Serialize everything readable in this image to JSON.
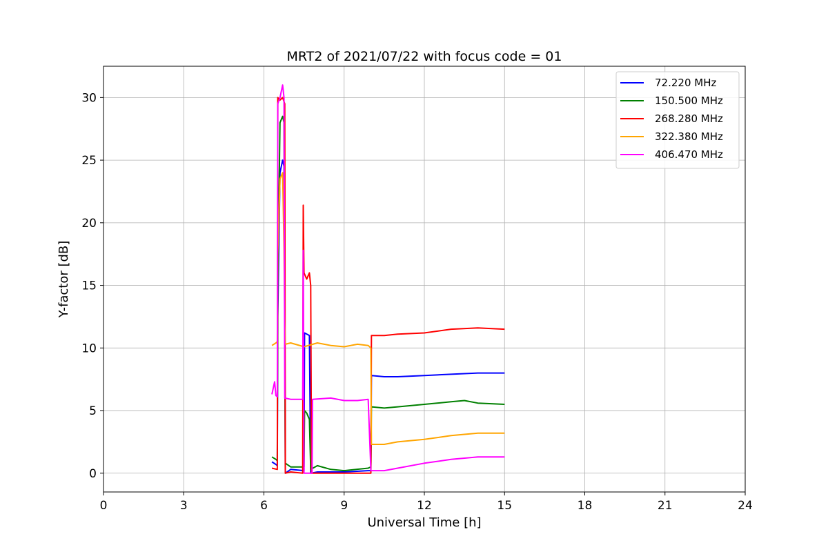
{
  "chart_data": {
    "type": "line",
    "title": "MRT2 of 2021/07/22 with focus code = 01",
    "xlabel": "Universal Time [h]",
    "ylabel": "Y-factor [dB]",
    "xlim": [
      0,
      24
    ],
    "ylim": [
      -1.5,
      32.5
    ],
    "xticks": [
      0,
      3,
      6,
      9,
      12,
      15,
      18,
      21,
      24
    ],
    "yticks": [
      0,
      5,
      10,
      15,
      20,
      25,
      30
    ],
    "grid": true,
    "legend_position": "top-right",
    "series": [
      {
        "name": " 72.220 MHz",
        "color": "#0000ff",
        "points": [
          [
            6.3,
            0.9
          ],
          [
            6.45,
            0.7
          ],
          [
            6.5,
            0.6
          ],
          [
            6.52,
            12.5
          ],
          [
            6.6,
            24.0
          ],
          [
            6.7,
            25.0
          ],
          [
            6.75,
            24.5
          ],
          [
            6.78,
            12.5
          ],
          [
            6.8,
            0.0
          ],
          [
            7.0,
            0.3
          ],
          [
            7.5,
            0.2
          ],
          [
            7.52,
            11.2
          ],
          [
            7.7,
            11.0
          ],
          [
            7.75,
            0.0
          ],
          [
            8.0,
            0.1
          ],
          [
            9.0,
            0.1
          ],
          [
            9.9,
            0.2
          ],
          [
            10.0,
            0.2
          ],
          [
            10.02,
            7.8
          ],
          [
            10.5,
            7.7
          ],
          [
            11.0,
            7.7
          ],
          [
            12.0,
            7.8
          ],
          [
            13.0,
            7.9
          ],
          [
            14.0,
            8.0
          ],
          [
            15.0,
            8.0
          ]
        ]
      },
      {
        "name": "150.500 MHz",
        "color": "#008000",
        "points": [
          [
            6.3,
            1.3
          ],
          [
            6.45,
            1.1
          ],
          [
            6.5,
            1.0
          ],
          [
            6.52,
            15.0
          ],
          [
            6.6,
            28.0
          ],
          [
            6.7,
            28.5
          ],
          [
            6.75,
            28.0
          ],
          [
            6.78,
            14.0
          ],
          [
            6.8,
            0.8
          ],
          [
            7.0,
            0.5
          ],
          [
            7.5,
            0.5
          ],
          [
            7.52,
            5.0
          ],
          [
            7.6,
            4.8
          ],
          [
            7.7,
            4.3
          ],
          [
            7.75,
            0.3
          ],
          [
            8.0,
            0.6
          ],
          [
            8.5,
            0.3
          ],
          [
            9.0,
            0.2
          ],
          [
            9.9,
            0.4
          ],
          [
            10.0,
            0.5
          ],
          [
            10.02,
            5.3
          ],
          [
            10.5,
            5.2
          ],
          [
            11.0,
            5.3
          ],
          [
            12.0,
            5.5
          ],
          [
            13.0,
            5.7
          ],
          [
            13.5,
            5.8
          ],
          [
            14.0,
            5.6
          ],
          [
            15.0,
            5.5
          ]
        ]
      },
      {
        "name": "268.280 MHz",
        "color": "#ff0000",
        "points": [
          [
            6.3,
            0.4
          ],
          [
            6.5,
            0.3
          ],
          [
            6.52,
            30.0
          ],
          [
            6.6,
            29.8
          ],
          [
            6.7,
            30.0
          ],
          [
            6.78,
            29.5
          ],
          [
            6.8,
            0.0
          ],
          [
            7.0,
            0.1
          ],
          [
            7.45,
            0.0
          ],
          [
            7.47,
            21.4
          ],
          [
            7.5,
            16.0
          ],
          [
            7.6,
            15.5
          ],
          [
            7.7,
            16.0
          ],
          [
            7.75,
            15.0
          ],
          [
            7.78,
            0.0
          ],
          [
            8.0,
            0.0
          ],
          [
            9.0,
            0.0
          ],
          [
            9.9,
            0.0
          ],
          [
            10.0,
            0.0
          ],
          [
            10.02,
            11.0
          ],
          [
            10.5,
            11.0
          ],
          [
            11.0,
            11.1
          ],
          [
            12.0,
            11.2
          ],
          [
            13.0,
            11.5
          ],
          [
            14.0,
            11.6
          ],
          [
            15.0,
            11.5
          ]
        ]
      },
      {
        "name": "322.380 MHz",
        "color": "#ffa500",
        "points": [
          [
            6.3,
            10.2
          ],
          [
            6.45,
            10.4
          ],
          [
            6.5,
            10.5
          ],
          [
            6.52,
            17.5
          ],
          [
            6.6,
            23.5
          ],
          [
            6.7,
            24.0
          ],
          [
            6.75,
            18.0
          ],
          [
            6.78,
            12.0
          ],
          [
            6.8,
            10.3
          ],
          [
            7.0,
            10.4
          ],
          [
            7.5,
            10.1
          ],
          [
            8.0,
            10.4
          ],
          [
            8.5,
            10.2
          ],
          [
            9.0,
            10.1
          ],
          [
            9.5,
            10.3
          ],
          [
            9.9,
            10.2
          ],
          [
            10.0,
            10.0
          ],
          [
            10.02,
            2.3
          ],
          [
            10.5,
            2.3
          ],
          [
            11.0,
            2.5
          ],
          [
            12.0,
            2.7
          ],
          [
            13.0,
            3.0
          ],
          [
            14.0,
            3.2
          ],
          [
            15.0,
            3.2
          ]
        ]
      },
      {
        "name": "406.470 MHz",
        "color": "#ff00ff",
        "points": [
          [
            6.3,
            6.3
          ],
          [
            6.4,
            7.3
          ],
          [
            6.45,
            6.2
          ],
          [
            6.5,
            6.1
          ],
          [
            6.52,
            29.5
          ],
          [
            6.6,
            30.0
          ],
          [
            6.7,
            31.0
          ],
          [
            6.75,
            30.0
          ],
          [
            6.78,
            6.0
          ],
          [
            7.0,
            5.9
          ],
          [
            7.45,
            5.9
          ],
          [
            7.47,
            17.8
          ],
          [
            7.5,
            0.0
          ],
          [
            7.8,
            0.0
          ],
          [
            7.82,
            5.9
          ],
          [
            8.5,
            6.0
          ],
          [
            9.0,
            5.8
          ],
          [
            9.5,
            5.8
          ],
          [
            9.9,
            5.9
          ],
          [
            10.0,
            0.2
          ],
          [
            10.5,
            0.2
          ],
          [
            11.0,
            0.4
          ],
          [
            12.0,
            0.8
          ],
          [
            13.0,
            1.1
          ],
          [
            14.0,
            1.3
          ],
          [
            15.0,
            1.3
          ]
        ]
      }
    ]
  }
}
